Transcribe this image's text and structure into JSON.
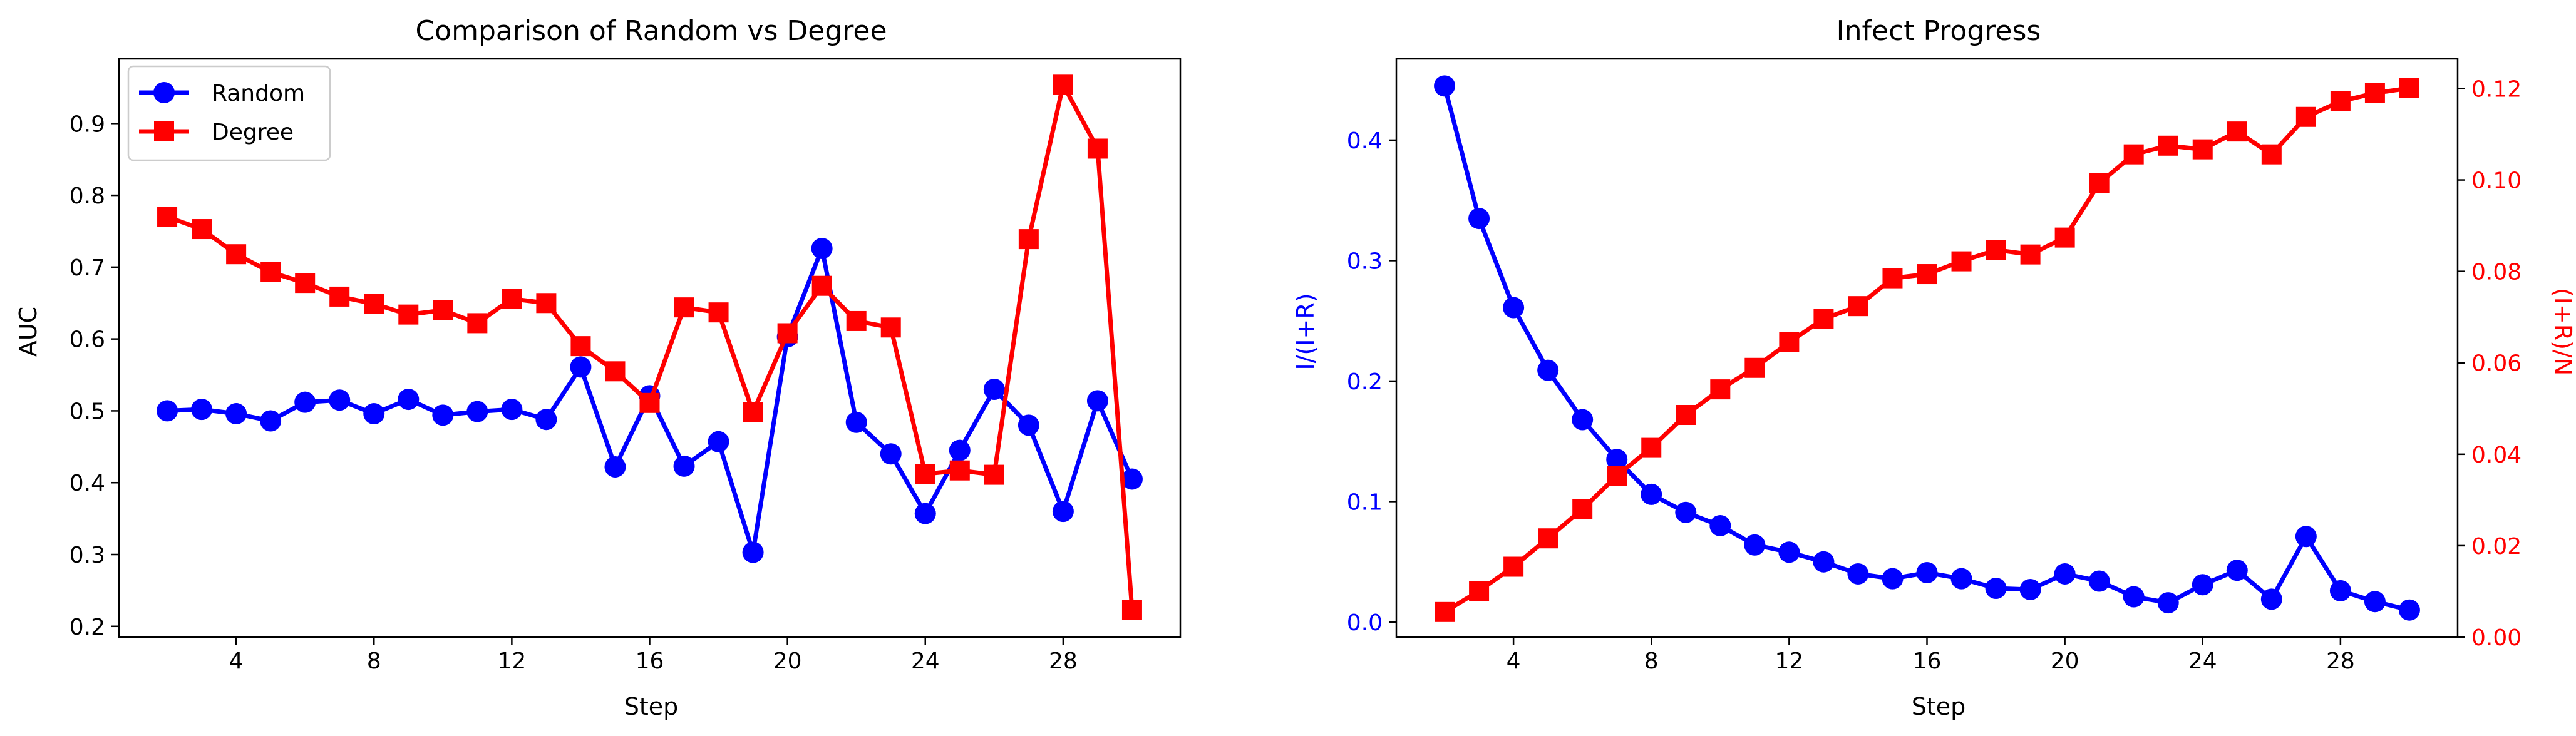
{
  "chart_data": [
    {
      "type": "line",
      "title": "Comparison of Random vs Degree",
      "xlabel": "Step",
      "ylabel": "AUC",
      "xlim": [
        0.6,
        31.4
      ],
      "ylim": [
        0.185,
        0.99
      ],
      "xticks": [
        4,
        8,
        12,
        16,
        20,
        24,
        28
      ],
      "yticks": [
        0.2,
        0.3,
        0.4,
        0.5,
        0.6,
        0.7,
        0.8,
        0.9
      ],
      "grid": false,
      "legend": "top-left",
      "x": [
        2,
        3,
        4,
        5,
        6,
        7,
        8,
        9,
        10,
        11,
        12,
        13,
        14,
        15,
        16,
        17,
        18,
        19,
        20,
        21,
        22,
        23,
        24,
        25,
        26,
        27,
        28,
        29,
        30
      ],
      "series": [
        {
          "name": "Random",
          "color": "#0000ff",
          "marker": "circle",
          "values": [
            0.5,
            0.502,
            0.496,
            0.486,
            0.512,
            0.515,
            0.496,
            0.516,
            0.494,
            0.499,
            0.502,
            0.488,
            0.561,
            0.422,
            0.521,
            0.423,
            0.457,
            0.303,
            0.603,
            0.726,
            0.484,
            0.44,
            0.357,
            0.445,
            0.53,
            0.48,
            0.36,
            0.514,
            0.405
          ]
        },
        {
          "name": "Degree",
          "color": "#ff0000",
          "marker": "square",
          "values": [
            0.77,
            0.753,
            0.718,
            0.693,
            0.678,
            0.659,
            0.649,
            0.634,
            0.64,
            0.622,
            0.656,
            0.65,
            0.59,
            0.555,
            0.511,
            0.644,
            0.637,
            0.498,
            0.608,
            0.674,
            0.625,
            0.616,
            0.412,
            0.417,
            0.411,
            0.739,
            0.954,
            0.865,
            0.223
          ]
        }
      ]
    },
    {
      "type": "line",
      "title": "Infect Progress",
      "xlabel": "Step",
      "ylabel_left": "I/(I+R)",
      "ylabel_right": "(I+R)/N",
      "xlim": [
        0.6,
        31.4
      ],
      "ylim_left": [
        -0.0125,
        0.4675
      ],
      "ylim_right": [
        0.0,
        0.1265
      ],
      "xticks": [
        4,
        8,
        12,
        16,
        20,
        24,
        28
      ],
      "yticks_left": [
        0.0,
        0.1,
        0.2,
        0.3,
        0.4
      ],
      "yticks_right": [
        0.0,
        0.02,
        0.04,
        0.06,
        0.08,
        0.1,
        0.12
      ],
      "grid": false,
      "x": [
        2,
        3,
        4,
        5,
        6,
        7,
        8,
        9,
        10,
        11,
        12,
        13,
        14,
        15,
        16,
        17,
        18,
        19,
        20,
        21,
        22,
        23,
        24,
        25,
        26,
        27,
        28,
        29,
        30
      ],
      "series": [
        {
          "axis": "left",
          "color": "#0000ff",
          "marker": "circle",
          "values": [
            0.445,
            0.335,
            0.261,
            0.209,
            0.168,
            0.135,
            0.106,
            0.091,
            0.08,
            0.064,
            0.058,
            0.05,
            0.04,
            0.036,
            0.041,
            0.036,
            0.028,
            0.027,
            0.04,
            0.034,
            0.021,
            0.016,
            0.031,
            0.043,
            0.019,
            0.071,
            0.026,
            0.017,
            0.01
          ]
        },
        {
          "axis": "right",
          "color": "#ff0000",
          "marker": "square",
          "values": [
            0.0055,
            0.0101,
            0.0154,
            0.0216,
            0.028,
            0.0353,
            0.0414,
            0.0486,
            0.0542,
            0.0589,
            0.0645,
            0.0696,
            0.0724,
            0.0785,
            0.0794,
            0.0822,
            0.0847,
            0.0837,
            0.0874,
            0.0993,
            0.1056,
            0.1075,
            0.1067,
            0.1106,
            0.1056,
            0.1138,
            0.1172,
            0.119,
            0.1201
          ]
        }
      ]
    }
  ]
}
